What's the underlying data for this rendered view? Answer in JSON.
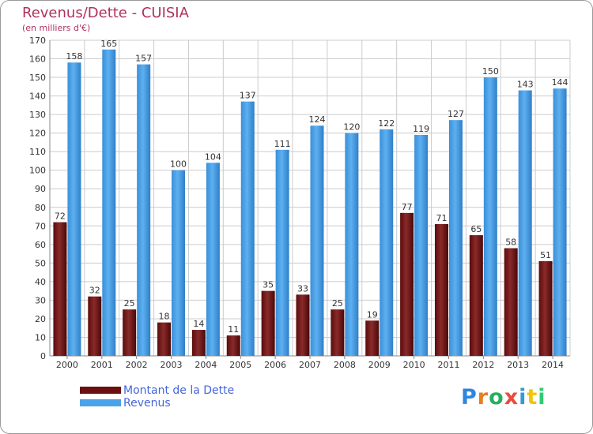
{
  "header": {
    "title": "Revenus/Dette - CUISIA",
    "subtitle": "(en milliers d'€)"
  },
  "colors": {
    "dette": "#7a1a1a",
    "revenus": "#4aa3e8",
    "grid": "#cccccc",
    "title": "#b03060",
    "legend_text": "#4466dd"
  },
  "legend": {
    "items": [
      {
        "label": "Montant de la Dette",
        "color": "#6b1010"
      },
      {
        "label": "Revenus",
        "color": "#4aa3e8"
      }
    ]
  },
  "logo": {
    "letters": [
      {
        "char": "P",
        "color": "#2e86de"
      },
      {
        "char": "r",
        "color": "#e67e22"
      },
      {
        "char": "o",
        "color": "#27ae60"
      },
      {
        "char": "x",
        "color": "#e74c3c"
      },
      {
        "char": "i",
        "color": "#3498db"
      },
      {
        "char": "t",
        "color": "#f1c40f"
      },
      {
        "char": "i",
        "color": "#2ecc71"
      }
    ]
  },
  "chart_data": {
    "type": "bar",
    "categories": [
      "2000",
      "2001",
      "2002",
      "2003",
      "2004",
      "2005",
      "2006",
      "2007",
      "2008",
      "2009",
      "2010",
      "2011",
      "2012",
      "2013",
      "2014"
    ],
    "series": [
      {
        "name": "Montant de la Dette",
        "values": [
          72,
          32,
          25,
          18,
          14,
          11,
          35,
          33,
          25,
          19,
          77,
          71,
          65,
          58,
          51
        ]
      },
      {
        "name": "Revenus",
        "values": [
          158,
          165,
          157,
          100,
          104,
          137,
          111,
          124,
          120,
          122,
          119,
          127,
          150,
          143,
          144
        ]
      }
    ],
    "ylim": [
      0,
      170
    ],
    "yticks": [
      0,
      10,
      20,
      30,
      40,
      50,
      60,
      70,
      80,
      90,
      100,
      110,
      120,
      130,
      140,
      150,
      160,
      170
    ],
    "grid": true,
    "legend_position": "bottom-left"
  }
}
